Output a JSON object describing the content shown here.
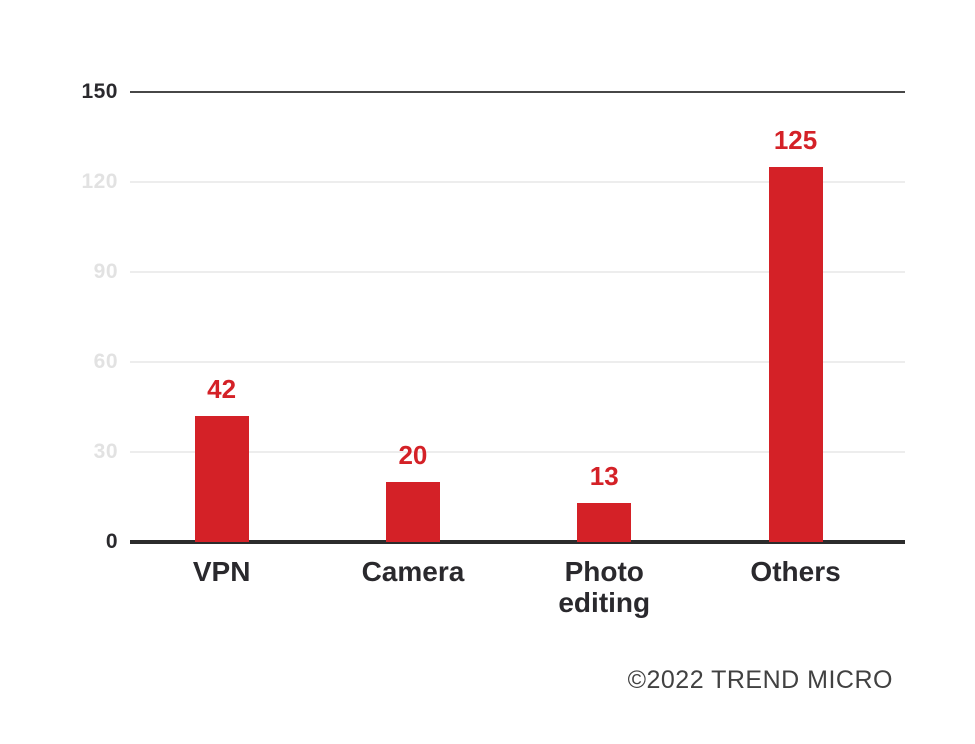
{
  "chart_data": {
    "type": "bar",
    "categories": [
      "VPN",
      "Camera",
      "Photo editing",
      "Others"
    ],
    "values": [
      42,
      20,
      13,
      125
    ],
    "value_labels": [
      "42",
      "20",
      "13",
      "125"
    ],
    "title": "",
    "xlabel": "",
    "ylabel": "",
    "ylim": [
      0,
      150
    ],
    "yticks": [
      0,
      30,
      60,
      90,
      120,
      150
    ],
    "emphasized_yticks": [
      0,
      150
    ],
    "grid": true,
    "legend": false,
    "bar_color": "#d42127",
    "value_label_color": "#d42127",
    "faded_tick_color": "#e2e2e2",
    "dark_tick_color": "#2a292d",
    "gridline_color": "#ededed",
    "top_line_color": "#474747",
    "axis_color": "#2c2c2c"
  },
  "footer": {
    "attribution": "©2022 TREND MICRO"
  }
}
